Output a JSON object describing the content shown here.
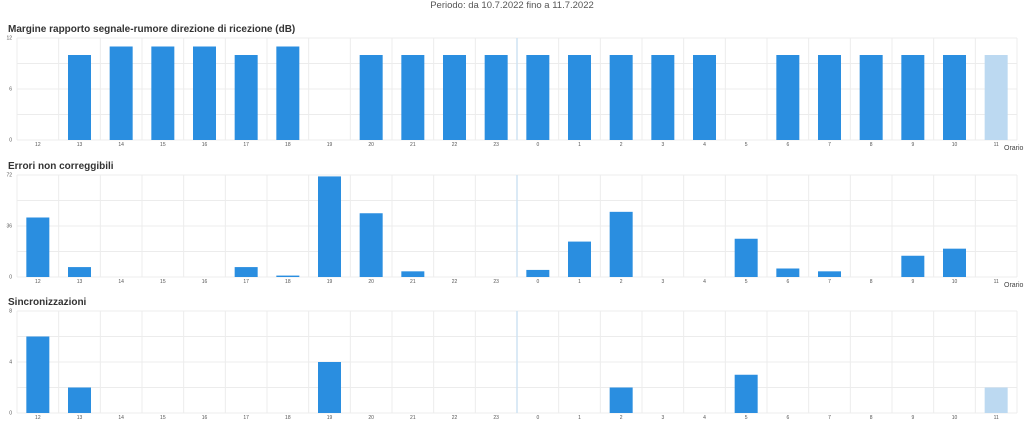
{
  "header": {
    "period": "Periodo: da 10.7.2022 fino a 11.7.2022"
  },
  "colors": {
    "bar": "#2a8ee0",
    "bar_current": "#bcd9f1",
    "grid": "#ececec",
    "divider": "#cfe3f3"
  },
  "chart_data": [
    {
      "type": "bar",
      "title": "Margine rapporto segnale-rumore direzione di ricezione (dB)",
      "xlabel": "Orario",
      "categories": [
        "12",
        "13",
        "14",
        "15",
        "16",
        "17",
        "18",
        "19",
        "20",
        "21",
        "22",
        "23",
        "0",
        "1",
        "2",
        "3",
        "4",
        "5",
        "6",
        "7",
        "8",
        "9",
        "10",
        "11"
      ],
      "values": [
        0,
        10,
        11,
        11,
        11,
        10,
        11,
        0,
        10,
        10,
        10,
        10,
        10,
        10,
        10,
        10,
        10,
        0,
        10,
        10,
        10,
        10,
        10,
        10
      ],
      "current_index": 23,
      "ylim": [
        0,
        12
      ],
      "yticks": [
        "0",
        "6",
        "12"
      ],
      "grid": true
    },
    {
      "type": "bar",
      "title": "Errori non correggibili",
      "xlabel": "Orario",
      "categories": [
        "12",
        "13",
        "14",
        "15",
        "16",
        "17",
        "18",
        "19",
        "20",
        "21",
        "22",
        "23",
        "0",
        "1",
        "2",
        "3",
        "4",
        "5",
        "6",
        "7",
        "8",
        "9",
        "10",
        "11"
      ],
      "values": [
        42,
        7,
        0,
        0,
        0,
        7,
        1,
        71,
        45,
        4,
        0,
        0,
        5,
        25,
        46,
        0,
        0,
        27,
        6,
        4,
        0,
        15,
        20,
        0
      ],
      "ylim": [
        0,
        72
      ],
      "yticks": [
        "0",
        "36",
        "72"
      ],
      "grid": true
    },
    {
      "type": "bar",
      "title": "Sincronizzazioni",
      "xlabel": "",
      "categories": [
        "12",
        "13",
        "14",
        "15",
        "16",
        "17",
        "18",
        "19",
        "20",
        "21",
        "22",
        "23",
        "0",
        "1",
        "2",
        "3",
        "4",
        "5",
        "6",
        "7",
        "8",
        "9",
        "10",
        "11"
      ],
      "values": [
        6,
        2,
        0,
        0,
        0,
        0,
        0,
        4,
        0,
        0,
        0,
        0,
        0,
        0,
        2,
        0,
        0,
        3,
        0,
        0,
        0,
        0,
        0,
        2
      ],
      "current_index": 23,
      "ylim": [
        0,
        8
      ],
      "yticks": [
        "0",
        "4",
        "8"
      ],
      "grid": true
    }
  ]
}
